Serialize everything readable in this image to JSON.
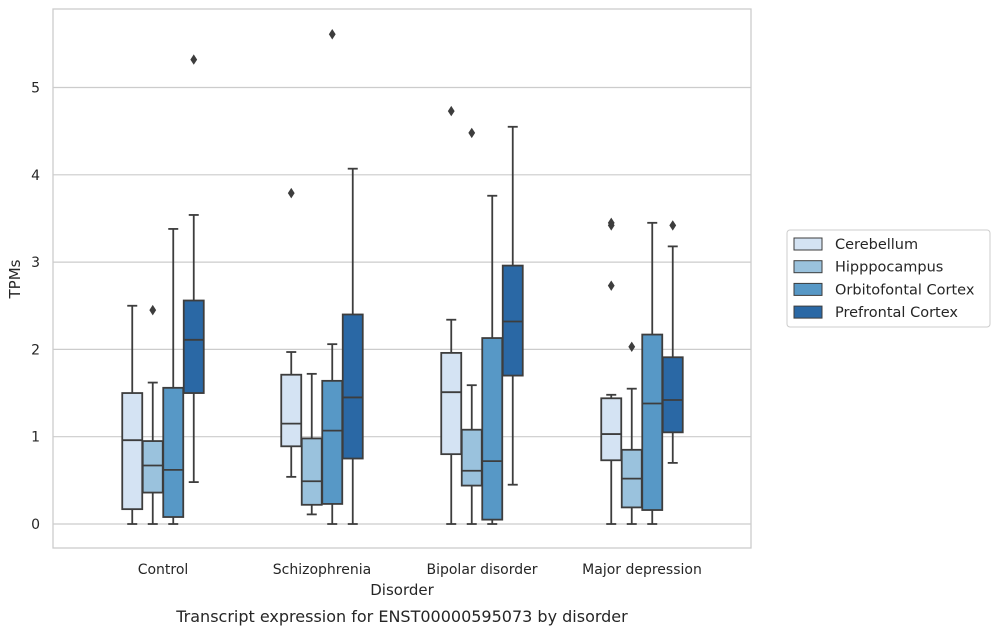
{
  "chart_data": {
    "type": "box",
    "caption": "Transcript expression for ENST00000595073 by disorder",
    "xlabel": "Disorder",
    "ylabel": "TPMs",
    "ylim": [
      -0.27,
      5.9
    ],
    "yticks": [
      0,
      1,
      2,
      3,
      4,
      5
    ],
    "grid": "horizontal",
    "legend_position": "right",
    "categories": [
      "Control",
      "Schizophrenia",
      "Bipolar disorder",
      "Major depression"
    ],
    "series": [
      {
        "name": "Cerebellum",
        "color": "#d4e3f3",
        "boxes": [
          {
            "whisker_low": 0.0,
            "q1": 0.17,
            "median": 0.96,
            "q3": 1.5,
            "whisker_high": 2.5,
            "outliers": []
          },
          {
            "whisker_low": 0.54,
            "q1": 0.89,
            "median": 1.15,
            "q3": 1.71,
            "whisker_high": 1.97,
            "outliers": [
              3.79
            ]
          },
          {
            "whisker_low": 0.0,
            "q1": 0.8,
            "median": 1.51,
            "q3": 1.96,
            "whisker_high": 2.34,
            "outliers": [
              4.73
            ]
          },
          {
            "whisker_low": 0.0,
            "q1": 0.73,
            "median": 1.03,
            "q3": 1.44,
            "whisker_high": 1.48,
            "outliers": [
              2.73,
              3.42,
              3.45
            ]
          }
        ]
      },
      {
        "name": "Hipppocampus",
        "color": "#9ac2dd",
        "boxes": [
          {
            "whisker_low": 0.0,
            "q1": 0.36,
            "median": 0.67,
            "q3": 0.95,
            "whisker_high": 1.62,
            "outliers": [
              2.45
            ]
          },
          {
            "whisker_low": 0.11,
            "q1": 0.22,
            "median": 0.49,
            "q3": 0.98,
            "whisker_high": 1.72,
            "outliers": []
          },
          {
            "whisker_low": 0.0,
            "q1": 0.44,
            "median": 0.61,
            "q3": 1.08,
            "whisker_high": 1.59,
            "outliers": [
              4.48
            ]
          },
          {
            "whisker_low": 0.0,
            "q1": 0.19,
            "median": 0.52,
            "q3": 0.85,
            "whisker_high": 1.55,
            "outliers": [
              2.03
            ]
          }
        ]
      },
      {
        "name": "Orbitofontal Cortex",
        "color": "#5798c6",
        "boxes": [
          {
            "whisker_low": 0.0,
            "q1": 0.08,
            "median": 0.62,
            "q3": 1.56,
            "whisker_high": 3.38,
            "outliers": []
          },
          {
            "whisker_low": 0.0,
            "q1": 0.23,
            "median": 1.07,
            "q3": 1.64,
            "whisker_high": 2.06,
            "outliers": [
              5.61
            ]
          },
          {
            "whisker_low": 0.0,
            "q1": 0.05,
            "median": 0.72,
            "q3": 2.13,
            "whisker_high": 3.76,
            "outliers": []
          },
          {
            "whisker_low": 0.0,
            "q1": 0.16,
            "median": 1.38,
            "q3": 2.17,
            "whisker_high": 3.45,
            "outliers": []
          }
        ]
      },
      {
        "name": "Prefrontal Cortex",
        "color": "#2a68a5",
        "boxes": [
          {
            "whisker_low": 0.48,
            "q1": 1.5,
            "median": 2.11,
            "q3": 2.56,
            "whisker_high": 3.54,
            "outliers": [
              5.32
            ]
          },
          {
            "whisker_low": 0.0,
            "q1": 0.75,
            "median": 1.45,
            "q3": 2.4,
            "whisker_high": 4.07,
            "outliers": []
          },
          {
            "whisker_low": 0.45,
            "q1": 1.7,
            "median": 2.32,
            "q3": 2.96,
            "whisker_high": 4.55,
            "outliers": []
          },
          {
            "whisker_low": 0.7,
            "q1": 1.05,
            "median": 1.42,
            "q3": 1.91,
            "whisker_high": 3.18,
            "outliers": [
              3.42
            ]
          }
        ]
      }
    ]
  }
}
